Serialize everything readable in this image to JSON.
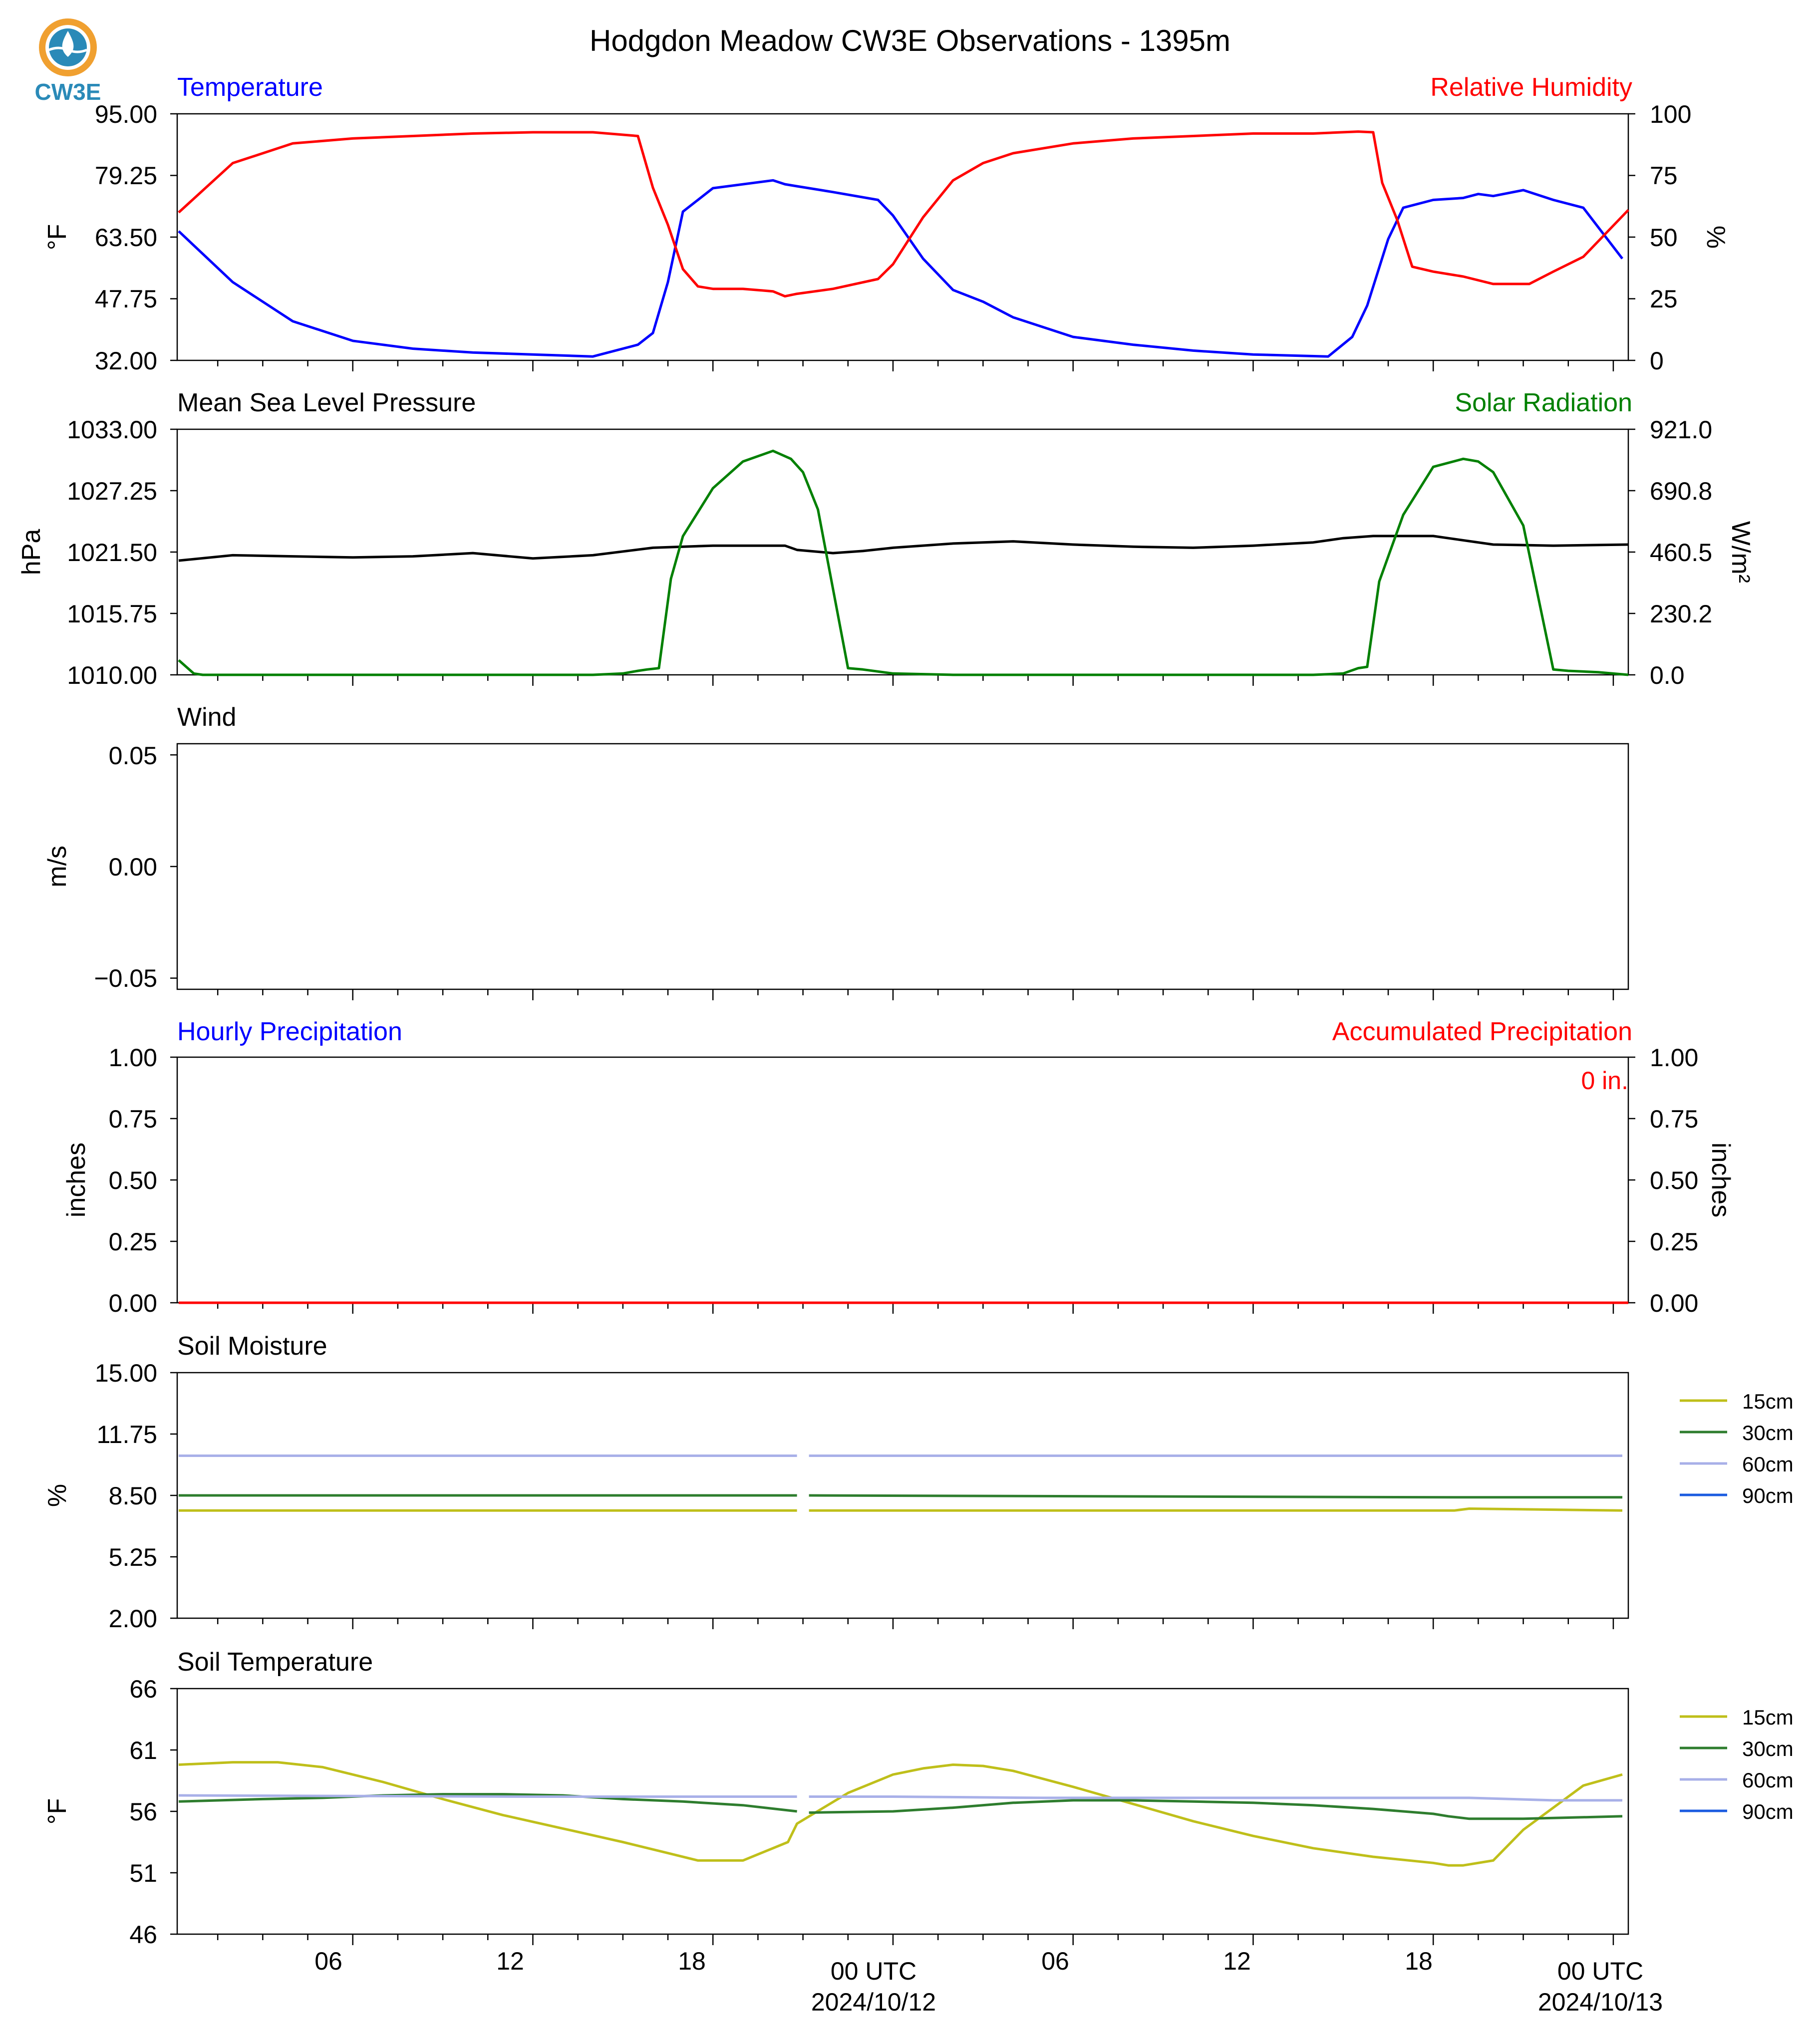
{
  "title": "Hodgdon Meadow CW3E Observations - 1395m",
  "logo_text": "CW3E",
  "x_axis": {
    "range_hours": [
      -23.85,
      24.5
    ],
    "tick_hours": [
      -18,
      -12,
      -6,
      0,
      6,
      12,
      18,
      24
    ],
    "tick_labels": [
      "06",
      "12",
      "18",
      "00 UTC",
      "06",
      "12",
      "18",
      "00 UTC"
    ],
    "date_labels": [
      "2024/10/12",
      "2024/10/13"
    ]
  },
  "colors": {
    "temperature": "#0000ff",
    "humidity": "#ff0000",
    "pressure": "#000000",
    "solar": "#008000",
    "soil_15cm": "#bfbf1a",
    "soil_30cm": "#2e7d2e",
    "soil_60cm": "#a8b0e8",
    "soil_90cm": "#1a5be0"
  },
  "panels": {
    "temp_rh": {
      "left_title": "Temperature",
      "right_title": "Relative Humidity",
      "left_ylabel": "°F",
      "right_ylabel": "%",
      "left_ticks": [
        "32.00",
        "47.75",
        "63.50",
        "79.25",
        "95.00"
      ],
      "right_ticks": [
        "0",
        "25",
        "50",
        "75",
        "100"
      ]
    },
    "pressure_solar": {
      "left_title": "Mean Sea Level Pressure",
      "right_title": "Solar Radiation",
      "left_ylabel": "hPa",
      "right_ylabel": "W/m²",
      "left_ticks": [
        "1010.00",
        "1015.75",
        "1021.50",
        "1027.25",
        "1033.00"
      ],
      "right_ticks": [
        "0.0",
        "230.2",
        "460.5",
        "690.8",
        "921.0"
      ]
    },
    "wind": {
      "left_title": "Wind",
      "left_ylabel": "m/s",
      "left_ticks": [
        "−0.05",
        "0.00",
        "0.05"
      ]
    },
    "precip": {
      "left_title": "Hourly Precipitation",
      "right_title": "Accumulated Precipitation",
      "left_ylabel": "inches",
      "right_ylabel": "inches",
      "left_ticks": [
        "0.00",
        "0.25",
        "0.50",
        "0.75",
        "1.00"
      ],
      "right_ticks": [
        "0.00",
        "0.25",
        "0.50",
        "0.75",
        "1.00"
      ],
      "total_label": "0 in."
    },
    "soil_moisture": {
      "left_title": "Soil Moisture",
      "left_ylabel": "%",
      "left_ticks": [
        "2.00",
        "5.25",
        "8.50",
        "11.75",
        "15.00"
      ],
      "legend": [
        "15cm",
        "30cm",
        "60cm",
        "90cm"
      ]
    },
    "soil_temp": {
      "left_title": "Soil Temperature",
      "left_ylabel": "°F",
      "left_ticks": [
        "46",
        "51",
        "56",
        "61",
        "66"
      ],
      "legend": [
        "15cm",
        "30cm",
        "60cm",
        "90cm"
      ]
    }
  },
  "chart_data": [
    {
      "type": "line",
      "title": "Temperature / Relative Humidity",
      "ylim": [
        32,
        95
      ],
      "y2lim": [
        0,
        100
      ],
      "series": [
        {
          "name": "Temperature",
          "axis": "left",
          "x": [
            -23.8,
            -22,
            -20,
            -18,
            -16,
            -14,
            -12,
            -10,
            -8.5,
            -8,
            -7.5,
            -7,
            -6,
            -4,
            -3.6,
            -3.2,
            -2,
            -0.5,
            0,
            1,
            2,
            3,
            4,
            6,
            8,
            10,
            12,
            14.5,
            15.3,
            15.8,
            16.5,
            17,
            18,
            19,
            19.5,
            20,
            21,
            22,
            23,
            24.3
          ],
          "y": [
            65,
            52,
            42,
            37,
            35,
            34,
            33.5,
            33,
            36,
            39,
            52,
            70,
            76,
            78,
            77,
            76.5,
            75,
            73,
            69,
            58,
            50,
            47,
            43,
            38,
            36,
            34.5,
            33.5,
            33,
            38,
            46,
            63,
            71,
            73,
            73.5,
            74.5,
            74,
            75.5,
            73,
            71,
            58
          ]
        },
        {
          "name": "Relative Humidity",
          "axis": "right",
          "x": [
            -23.8,
            -22,
            -20,
            -18,
            -16,
            -14,
            -12,
            -10,
            -8.5,
            -8,
            -7.5,
            -7,
            -6.5,
            -6,
            -5,
            -4,
            -3.6,
            -3.2,
            -2,
            -0.5,
            0,
            1,
            2,
            3,
            4,
            6,
            8,
            10,
            12,
            14,
            15.5,
            16,
            16.3,
            16.8,
            17.3,
            18,
            18.5,
            19,
            20,
            21.2,
            22,
            23,
            24.5
          ],
          "y": [
            60,
            80,
            88,
            90,
            91,
            92,
            92.5,
            92.5,
            91,
            70,
            55,
            37,
            30,
            29,
            29,
            28,
            26,
            27,
            29,
            33,
            39,
            58,
            73,
            80,
            84,
            88,
            90,
            91,
            92,
            92,
            92.8,
            92.5,
            72,
            57,
            38,
            36,
            35,
            34,
            31,
            31,
            36,
            42,
            61
          ]
        }
      ]
    },
    {
      "type": "line",
      "title": "Mean Sea Level Pressure / Solar Radiation",
      "ylim": [
        1010,
        1033
      ],
      "y2lim": [
        0,
        921
      ],
      "series": [
        {
          "name": "Mean Sea Level Pressure",
          "axis": "left",
          "x": [
            -23.8,
            -22,
            -20,
            -18,
            -16,
            -14,
            -12,
            -10,
            -8,
            -6,
            -3.6,
            -3.2,
            -2,
            -1,
            0,
            2,
            4,
            6,
            8,
            10,
            12,
            14,
            15,
            16,
            18,
            18.5,
            20,
            22,
            24.5
          ],
          "y": [
            1020.7,
            1021.2,
            1021.1,
            1021.0,
            1021.1,
            1021.4,
            1020.9,
            1021.2,
            1021.9,
            1022.1,
            1022.1,
            1021.7,
            1021.4,
            1021.6,
            1021.9,
            1022.3,
            1022.5,
            1022.2,
            1022.0,
            1021.9,
            1022.1,
            1022.4,
            1022.8,
            1023.0,
            1023.0,
            1022.8,
            1022.2,
            1022.1,
            1022.2
          ]
        },
        {
          "name": "Solar Radiation",
          "axis": "right",
          "x": [
            -23.8,
            -23.3,
            -23,
            -20,
            -15,
            -10,
            -9,
            -8.5,
            -8.2,
            -7.8,
            -7.4,
            -7,
            -6,
            -5,
            -4,
            -3.8,
            -3.4,
            -3,
            -2.5,
            -1.5,
            -1,
            0,
            2,
            4,
            6,
            8,
            10,
            12,
            13,
            14,
            15,
            15.5,
            15.8,
            16.2,
            17,
            18,
            19,
            19.5,
            20,
            21,
            22,
            22.5,
            23.5,
            24.5
          ],
          "y": [
            55,
            5,
            0,
            0,
            0,
            0,
            5,
            15,
            20,
            25,
            360,
            520,
            700,
            800,
            840,
            830,
            810,
            760,
            620,
            25,
            20,
            5,
            0,
            0,
            0,
            0,
            0,
            0,
            0,
            0,
            5,
            25,
            30,
            350,
            600,
            780,
            810,
            800,
            760,
            560,
            20,
            15,
            10,
            0
          ]
        }
      ]
    },
    {
      "type": "line",
      "title": "Wind",
      "ylim": [
        -0.055,
        0.055
      ],
      "series": []
    },
    {
      "type": "line",
      "title": "Hourly Precipitation / Accumulated Precipitation",
      "ylim": [
        0,
        1
      ],
      "y2lim": [
        0,
        1
      ],
      "series": [
        {
          "name": "Hourly Precipitation",
          "axis": "left",
          "x": [
            -23.8,
            24.5
          ],
          "y": [
            0,
            0
          ]
        },
        {
          "name": "Accumulated Precipitation",
          "axis": "right",
          "x": [
            -23.8,
            24.5
          ],
          "y": [
            0,
            0
          ]
        }
      ]
    },
    {
      "type": "line",
      "title": "Soil Moisture",
      "ylim": [
        2,
        15
      ],
      "series": [
        {
          "name": "15cm",
          "x": [
            -23.8,
            -3.2,
            -2.8,
            18.7,
            19.2,
            24.3
          ],
          "y": [
            7.7,
            7.7,
            7.7,
            7.7,
            7.8,
            7.7
          ]
        },
        {
          "name": "30cm",
          "x": [
            -23.8,
            -3.2,
            -2.8,
            18.7,
            19.2,
            24.3
          ],
          "y": [
            8.5,
            8.5,
            8.5,
            8.4,
            8.4,
            8.4
          ]
        },
        {
          "name": "60cm",
          "x": [
            -23.8,
            -3.2,
            -2.8,
            18.7,
            19.2,
            24.3
          ],
          "y": [
            10.6,
            10.6,
            10.6,
            10.6,
            10.6,
            10.6
          ]
        },
        {
          "name": "90cm",
          "x": [],
          "y": []
        }
      ]
    },
    {
      "type": "line",
      "title": "Soil Temperature",
      "ylim": [
        46,
        66
      ],
      "series": [
        {
          "name": "15cm",
          "x": [
            -23.8,
            -22,
            -20.5,
            -19,
            -17,
            -15,
            -13,
            -11,
            -9,
            -7.5,
            -6.5,
            -5,
            -3.5,
            -3.2,
            -1.5,
            0,
            1,
            2,
            3,
            4,
            6,
            8,
            10,
            12,
            14,
            16,
            18,
            18.5,
            19,
            20,
            21,
            22,
            23,
            24.3
          ],
          "y": [
            59.8,
            60,
            60,
            59.6,
            58.4,
            57,
            55.7,
            54.6,
            53.5,
            52.6,
            52,
            52,
            53.5,
            55,
            57.5,
            59,
            59.5,
            59.8,
            59.7,
            59.3,
            58,
            56.6,
            55.2,
            54,
            53,
            52.3,
            51.8,
            51.6,
            51.6,
            52,
            54.5,
            56.3,
            58.1,
            59
          ]
        },
        {
          "name": "30cm",
          "x": [
            -23.8,
            -21,
            -19,
            -17,
            -15,
            -13,
            -11,
            -9,
            -7,
            -5,
            -3.2,
            -2.8,
            0,
            2,
            4,
            6,
            8,
            10,
            12,
            14,
            16,
            18,
            18.5,
            19.2,
            21,
            24.3
          ],
          "y": [
            56.8,
            57,
            57.1,
            57.3,
            57.4,
            57.4,
            57.3,
            57,
            56.8,
            56.5,
            56,
            55.9,
            56,
            56.3,
            56.7,
            56.9,
            56.9,
            56.8,
            56.7,
            56.5,
            56.2,
            55.8,
            55.6,
            55.4,
            55.4,
            55.6
          ]
        },
        {
          "name": "60cm",
          "x": [
            -23.8,
            -12,
            -3.2,
            -2.8,
            0,
            5,
            10,
            18.7,
            19.2,
            22,
            24.3
          ],
          "y": [
            57.3,
            57.2,
            57.2,
            57.2,
            57.2,
            57.1,
            57.1,
            57.1,
            57.1,
            56.9,
            56.9
          ]
        },
        {
          "name": "90cm",
          "x": [],
          "y": []
        }
      ]
    }
  ]
}
